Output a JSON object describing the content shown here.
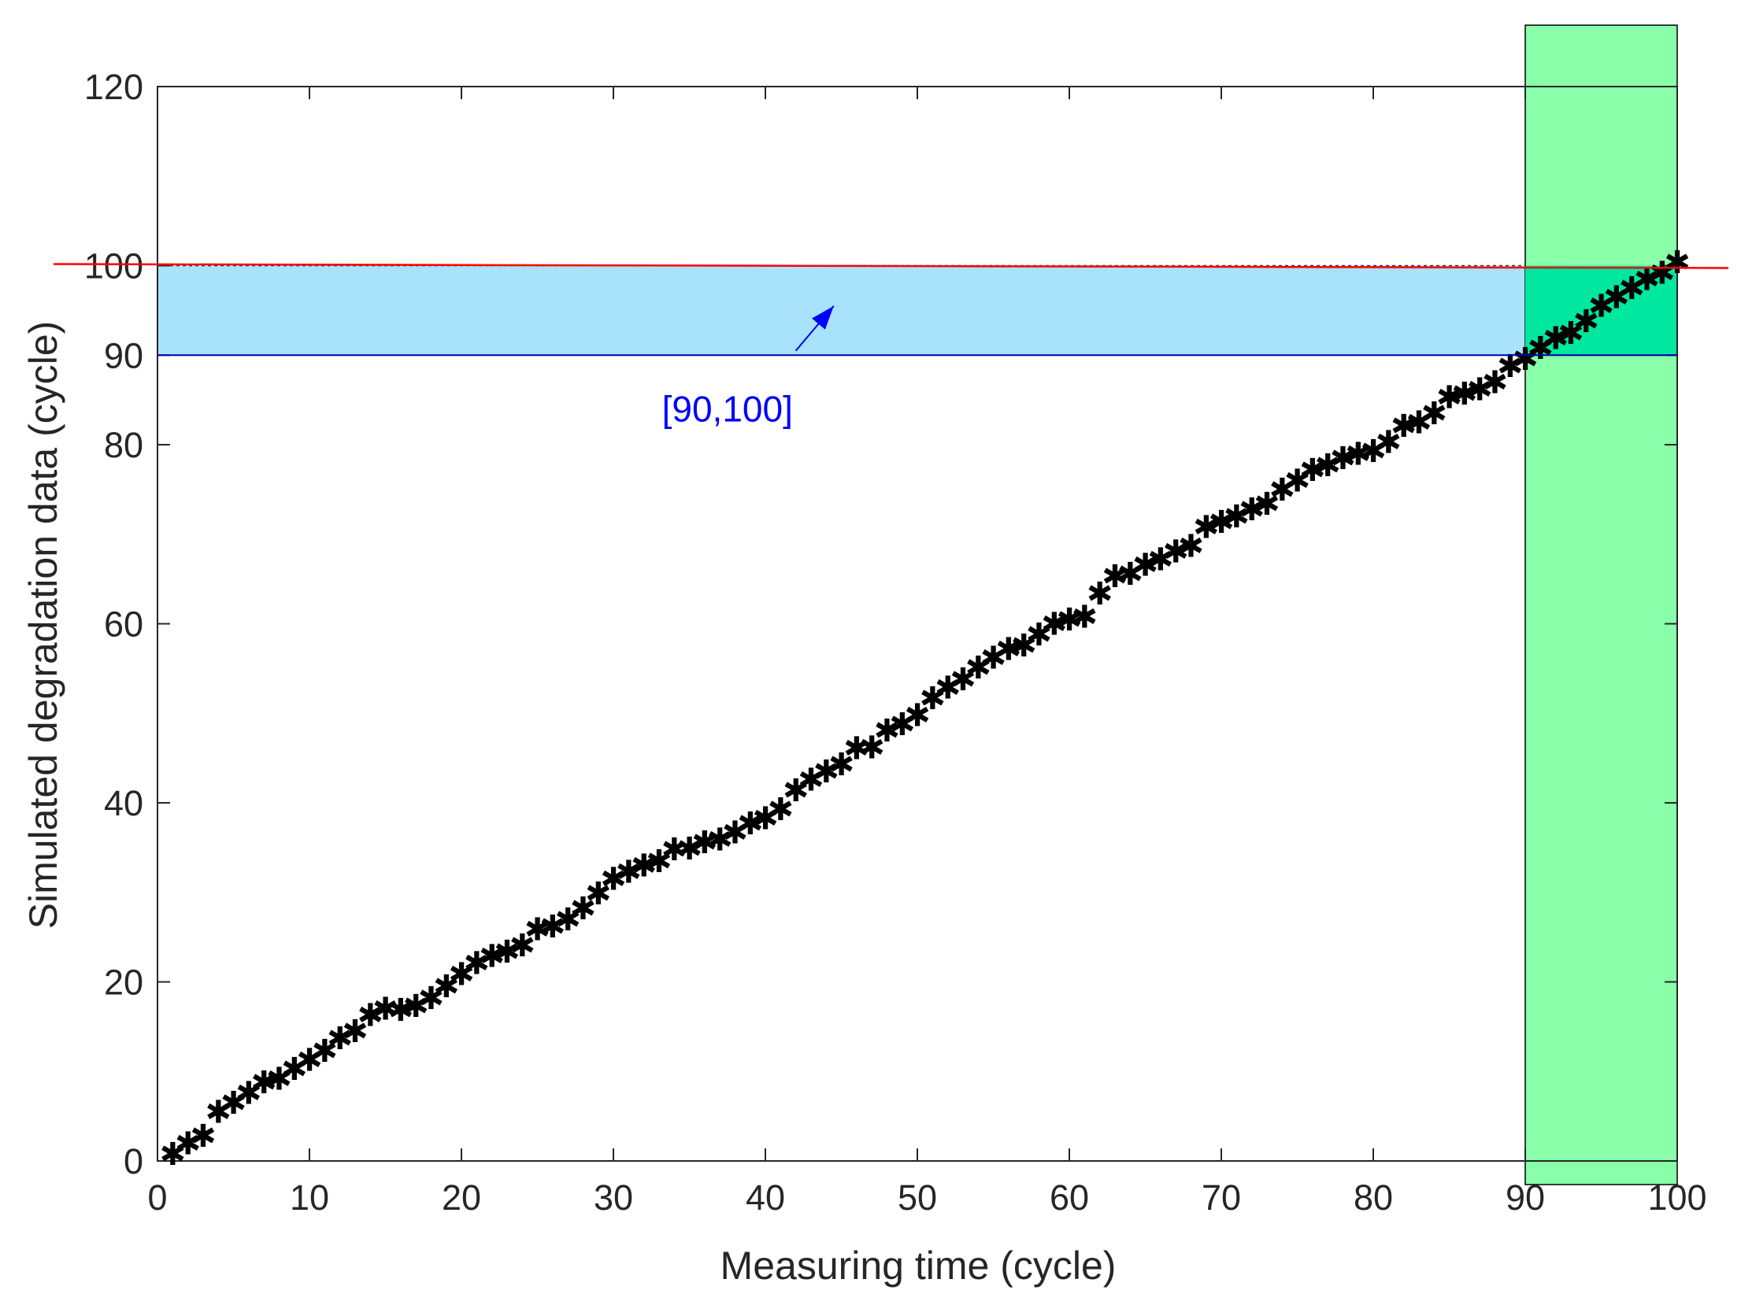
{
  "chart_data": {
    "type": "scatter",
    "title": "",
    "xlabel": "Measuring time (cycle)",
    "ylabel": "Simulated degradation data (cycle)",
    "xlim": [
      0,
      100
    ],
    "ylim": [
      0,
      120
    ],
    "xticks": [
      0,
      10,
      20,
      30,
      40,
      50,
      60,
      70,
      80,
      90,
      100
    ],
    "yticks": [
      0,
      20,
      40,
      60,
      80,
      90,
      100,
      120
    ],
    "grid": false,
    "marker": "*",
    "marker_glyph": "✱",
    "colors": {
      "marker": "#000000",
      "threshold_line": "#ff0000",
      "y_band": "#a8e2fb",
      "x_band": "#88ffa8",
      "overlap": "#00e7a0",
      "annotation": "#0000ff",
      "axis": "#262626"
    },
    "threshold": 100,
    "y_band": [
      90,
      100
    ],
    "x_band": [
      90,
      100
    ],
    "annotation": {
      "text": "[90,100]",
      "arrow_to": [
        44.5,
        95.5
      ],
      "arrow_from": [
        42,
        90.5
      ],
      "text_at": [
        37.5,
        84
      ]
    },
    "series": [
      {
        "x": [
          1,
          2,
          3,
          4,
          5,
          6,
          7,
          8,
          9,
          10,
          11,
          12,
          13,
          14,
          15,
          16,
          17,
          18,
          19,
          20,
          21,
          22,
          23,
          24,
          25,
          26,
          27,
          28,
          29,
          30,
          31,
          32,
          33,
          34,
          35,
          36,
          37,
          38,
          39,
          40,
          41,
          42,
          43,
          44,
          45,
          46,
          47,
          48,
          49,
          50,
          51,
          52,
          53,
          54,
          55,
          56,
          57,
          58,
          59,
          60,
          61,
          62,
          63,
          64,
          65,
          66,
          67,
          68,
          69,
          70,
          71,
          72,
          73,
          74,
          75,
          76,
          77,
          78,
          79,
          80,
          81,
          82,
          83,
          84,
          85,
          86,
          87,
          88,
          89,
          90,
          91,
          92,
          93,
          94,
          95,
          96,
          97,
          98,
          99,
          100
        ],
        "y": [
          0.8,
          2,
          2.8,
          5.5,
          6.5,
          7.6,
          8.8,
          9.2,
          10.3,
          11.3,
          12.3,
          13.7,
          14.5,
          16.3,
          17,
          16.9,
          17.3,
          18.2,
          19.5,
          20.9,
          22.1,
          22.9,
          23.4,
          24.1,
          25.9,
          26.2,
          27,
          28.2,
          29.9,
          31.5,
          32.3,
          33,
          33.5,
          34.8,
          34.9,
          35.6,
          35.9,
          36.7,
          37.7,
          38.3,
          39.3,
          41.4,
          42.6,
          43.5,
          44.3,
          46.1,
          46.2,
          48.1,
          48.8,
          49.8,
          51.7,
          52.9,
          53.8,
          55.1,
          56.2,
          57.2,
          57.6,
          58.8,
          60,
          60.5,
          60.8,
          63.4,
          65.3,
          65.6,
          66.6,
          67.2,
          68.1,
          68.7,
          70.8,
          71.4,
          72,
          72.8,
          73.4,
          75,
          76,
          77.2,
          77.7,
          78.5,
          79,
          79.3,
          80.3,
          82.1,
          82.5,
          83.5,
          85.3,
          85.7,
          86.2,
          87,
          88.8,
          89.6,
          90.8,
          91.9,
          92.5,
          93.8,
          95.5,
          96.5,
          97.5,
          98.5,
          99.2,
          100.4
        ]
      }
    ]
  }
}
